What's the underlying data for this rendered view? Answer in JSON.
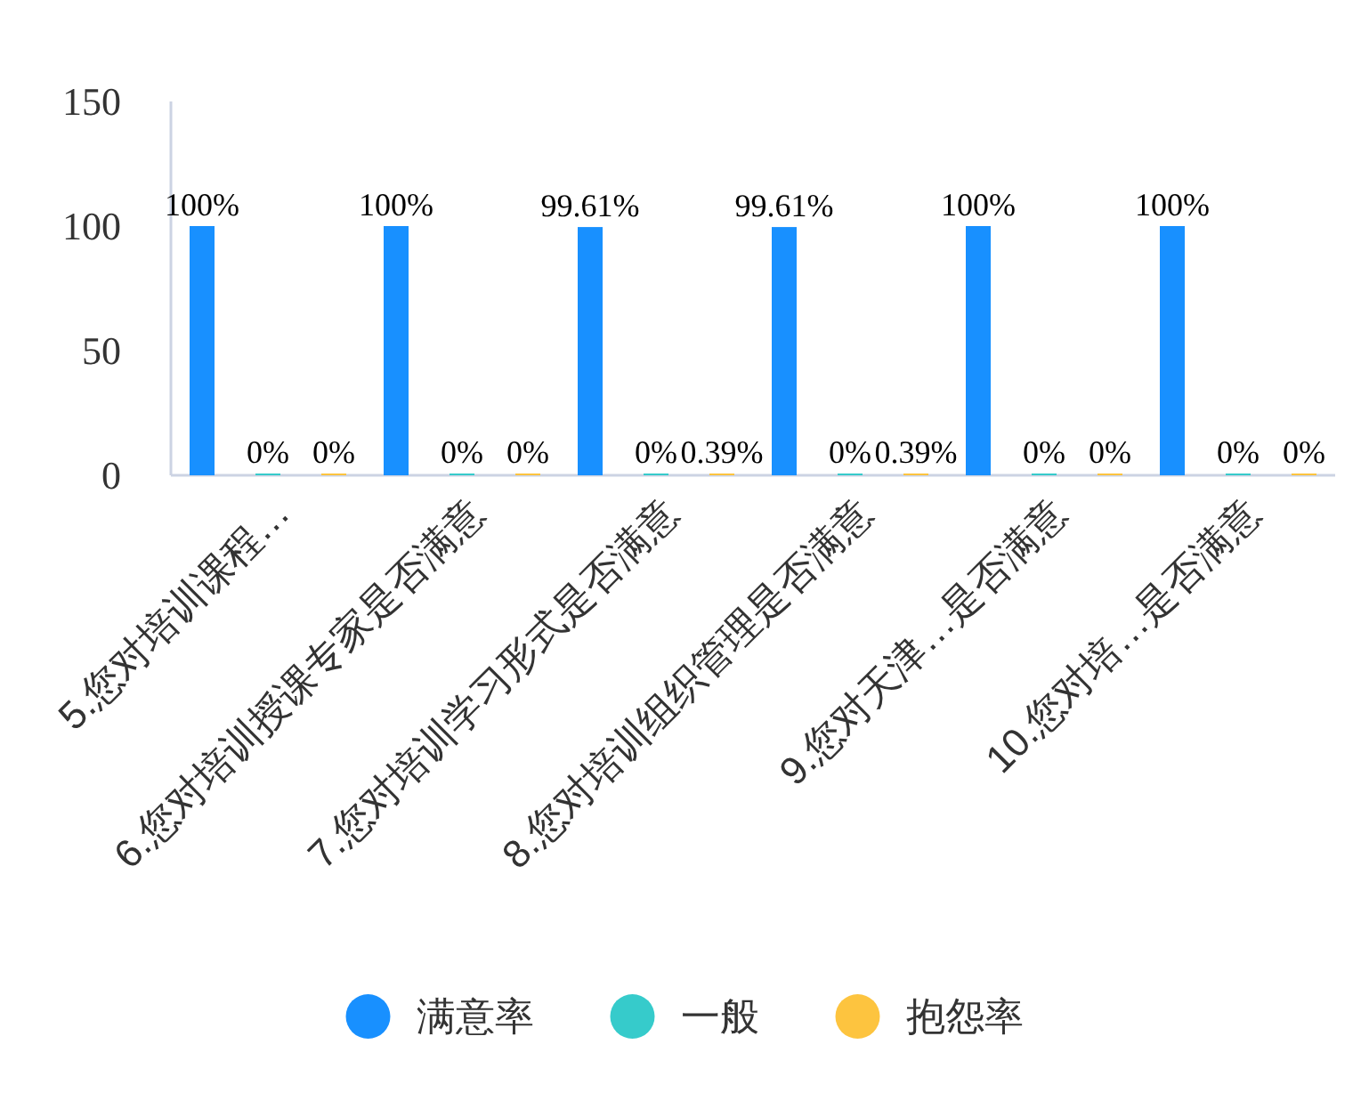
{
  "chart_data": {
    "type": "bar",
    "categories": [
      "5.您对培训课程…",
      "6.您对培训授课专家是否满意",
      "7.您对培训学习形式是否满意",
      "8.您对培训组织管理是否满意",
      "9.您对天津…是否满意",
      "10.您对培…是否满意"
    ],
    "series": [
      {
        "name": "满意率",
        "color": "#1890ff",
        "values": [
          100,
          100,
          99.61,
          99.61,
          100,
          100
        ],
        "value_labels": [
          "100%",
          "100%",
          "99.61%",
          "99.61%",
          "100%",
          "100%"
        ]
      },
      {
        "name": "一般",
        "color": "#36cbcb",
        "values": [
          0,
          0,
          0,
          0,
          0,
          0
        ],
        "value_labels": [
          "0%",
          "0%",
          "0%",
          "0%",
          "0%",
          "0%"
        ]
      },
      {
        "name": "抱怨率",
        "color": "#fdc43f",
        "values": [
          0,
          0,
          0.39,
          0.39,
          0,
          0
        ],
        "value_labels": [
          "0%",
          "0%",
          "0.39%",
          "0.39%",
          "0%",
          "0%"
        ]
      }
    ],
    "ylim": [
      0,
      150
    ],
    "yticks": [
      0,
      50,
      100,
      150
    ],
    "legend": "bottom"
  }
}
